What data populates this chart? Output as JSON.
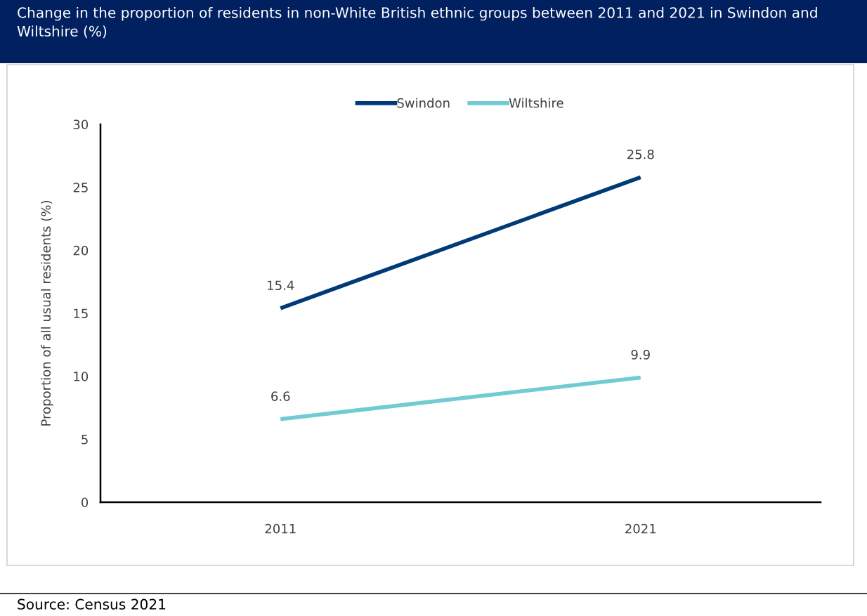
{
  "chart_data": {
    "type": "line",
    "title": "Change in the proportion of residents in non-White British ethnic groups between 2011 and 2021 in Swindon and Wiltshire (%)",
    "ylabel": "Proportion of all usual residents (%)",
    "categories": [
      "2011",
      "2021"
    ],
    "series": [
      {
        "name": "Swindon",
        "color": "#003a78",
        "values": [
          15.4,
          25.8
        ]
      },
      {
        "name": "Wiltshire",
        "color": "#70cbd3",
        "values": [
          6.6,
          9.9
        ]
      }
    ],
    "ylim": [
      0,
      30
    ],
    "yticks": [
      0,
      5,
      10,
      15,
      20,
      25,
      30
    ],
    "data_labels": true,
    "legend": "top",
    "grid": false,
    "marker": "none",
    "line_style": "solid",
    "annotations": [
      "Source: Census 2021"
    ]
  }
}
